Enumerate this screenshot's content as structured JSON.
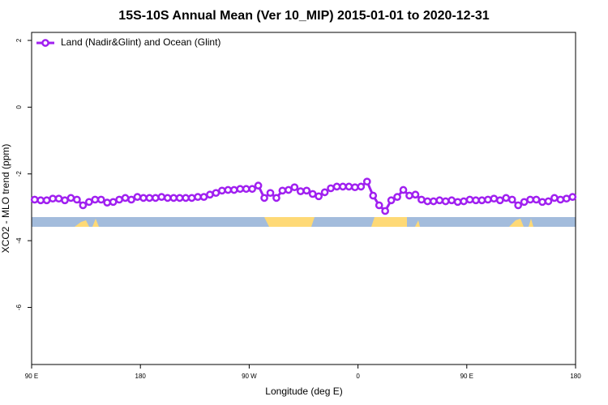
{
  "chart_data": {
    "type": "line",
    "title": "15S-10S Annual Mean (Ver 10_MIP)   2015-01-01 to 2020-12-31",
    "xlabel": "Longitude (deg E)",
    "ylabel": "XCO2 - MLO trend (ppm)",
    "x": [
      92.5,
      97.5,
      102.5,
      107.5,
      112.5,
      117.5,
      122.5,
      127.5,
      132.5,
      137.5,
      142.5,
      147.5,
      152.5,
      157.5,
      162.5,
      167.5,
      172.5,
      177.5,
      182.5,
      187.5,
      192.5,
      197.5,
      202.5,
      207.5,
      212.5,
      217.5,
      222.5,
      227.5,
      232.5,
      237.5,
      242.5,
      247.5,
      252.5,
      257.5,
      262.5,
      267.5,
      272.5,
      277.5,
      282.5,
      287.5,
      292.5,
      297.5,
      302.5,
      307.5,
      312.5,
      317.5,
      322.5,
      327.5,
      332.5,
      337.5,
      342.5,
      347.5,
      352.5,
      357.5,
      362.5,
      367.5,
      372.5,
      377.5,
      382.5,
      387.5,
      392.5,
      397.5,
      402.5,
      407.5,
      412.5,
      417.5,
      422.5,
      427.5,
      432.5,
      437.5,
      442.5,
      447.5,
      452.5,
      457.5,
      462.5,
      467.5,
      472.5,
      477.5,
      482.5,
      487.5,
      492.5,
      497.5,
      502.5,
      507.5,
      512.5,
      517.5,
      522.5,
      527.5,
      532.5,
      537.5
    ],
    "series": [
      {
        "name": "Land (Nadir&Glint) and Ocean (Glint)",
        "color": "#a020f0",
        "values": [
          -2.77,
          -2.79,
          -2.79,
          -2.74,
          -2.74,
          -2.79,
          -2.72,
          -2.77,
          -2.94,
          -2.84,
          -2.77,
          -2.77,
          -2.86,
          -2.84,
          -2.77,
          -2.72,
          -2.77,
          -2.69,
          -2.72,
          -2.72,
          -2.72,
          -2.69,
          -2.72,
          -2.72,
          -2.72,
          -2.72,
          -2.72,
          -2.69,
          -2.69,
          -2.62,
          -2.57,
          -2.5,
          -2.48,
          -2.48,
          -2.45,
          -2.45,
          -2.45,
          -2.35,
          -2.72,
          -2.57,
          -2.72,
          -2.5,
          -2.48,
          -2.4,
          -2.52,
          -2.5,
          -2.6,
          -2.67,
          -2.55,
          -2.43,
          -2.38,
          -2.38,
          -2.38,
          -2.4,
          -2.38,
          -2.23,
          -2.65,
          -2.94,
          -3.11,
          -2.79,
          -2.69,
          -2.48,
          -2.65,
          -2.62,
          -2.77,
          -2.82,
          -2.82,
          -2.79,
          -2.82,
          -2.79,
          -2.84,
          -2.82,
          -2.77,
          -2.79,
          -2.79,
          -2.77,
          -2.74,
          -2.79,
          -2.72,
          -2.77,
          -2.94,
          -2.84,
          -2.77,
          -2.77,
          -2.84,
          -2.82,
          -2.72,
          -2.77,
          -2.74,
          -2.69
        ]
      }
    ],
    "xlim": [
      90,
      540
    ],
    "xticks": [
      {
        "value": 90,
        "label": "90 E"
      },
      180,
      {
        "value": 270,
        "label": "90 W"
      },
      {
        "value": 360,
        "label": "0"
      },
      {
        "value": 450,
        "label": "90 E"
      },
      {
        "value": 540,
        "label": "180"
      }
    ],
    "ylim": [
      -7.71,
      2.24
    ],
    "yticks": [
      2,
      0,
      -2,
      -4,
      -6
    ],
    "legend": "upper left"
  }
}
